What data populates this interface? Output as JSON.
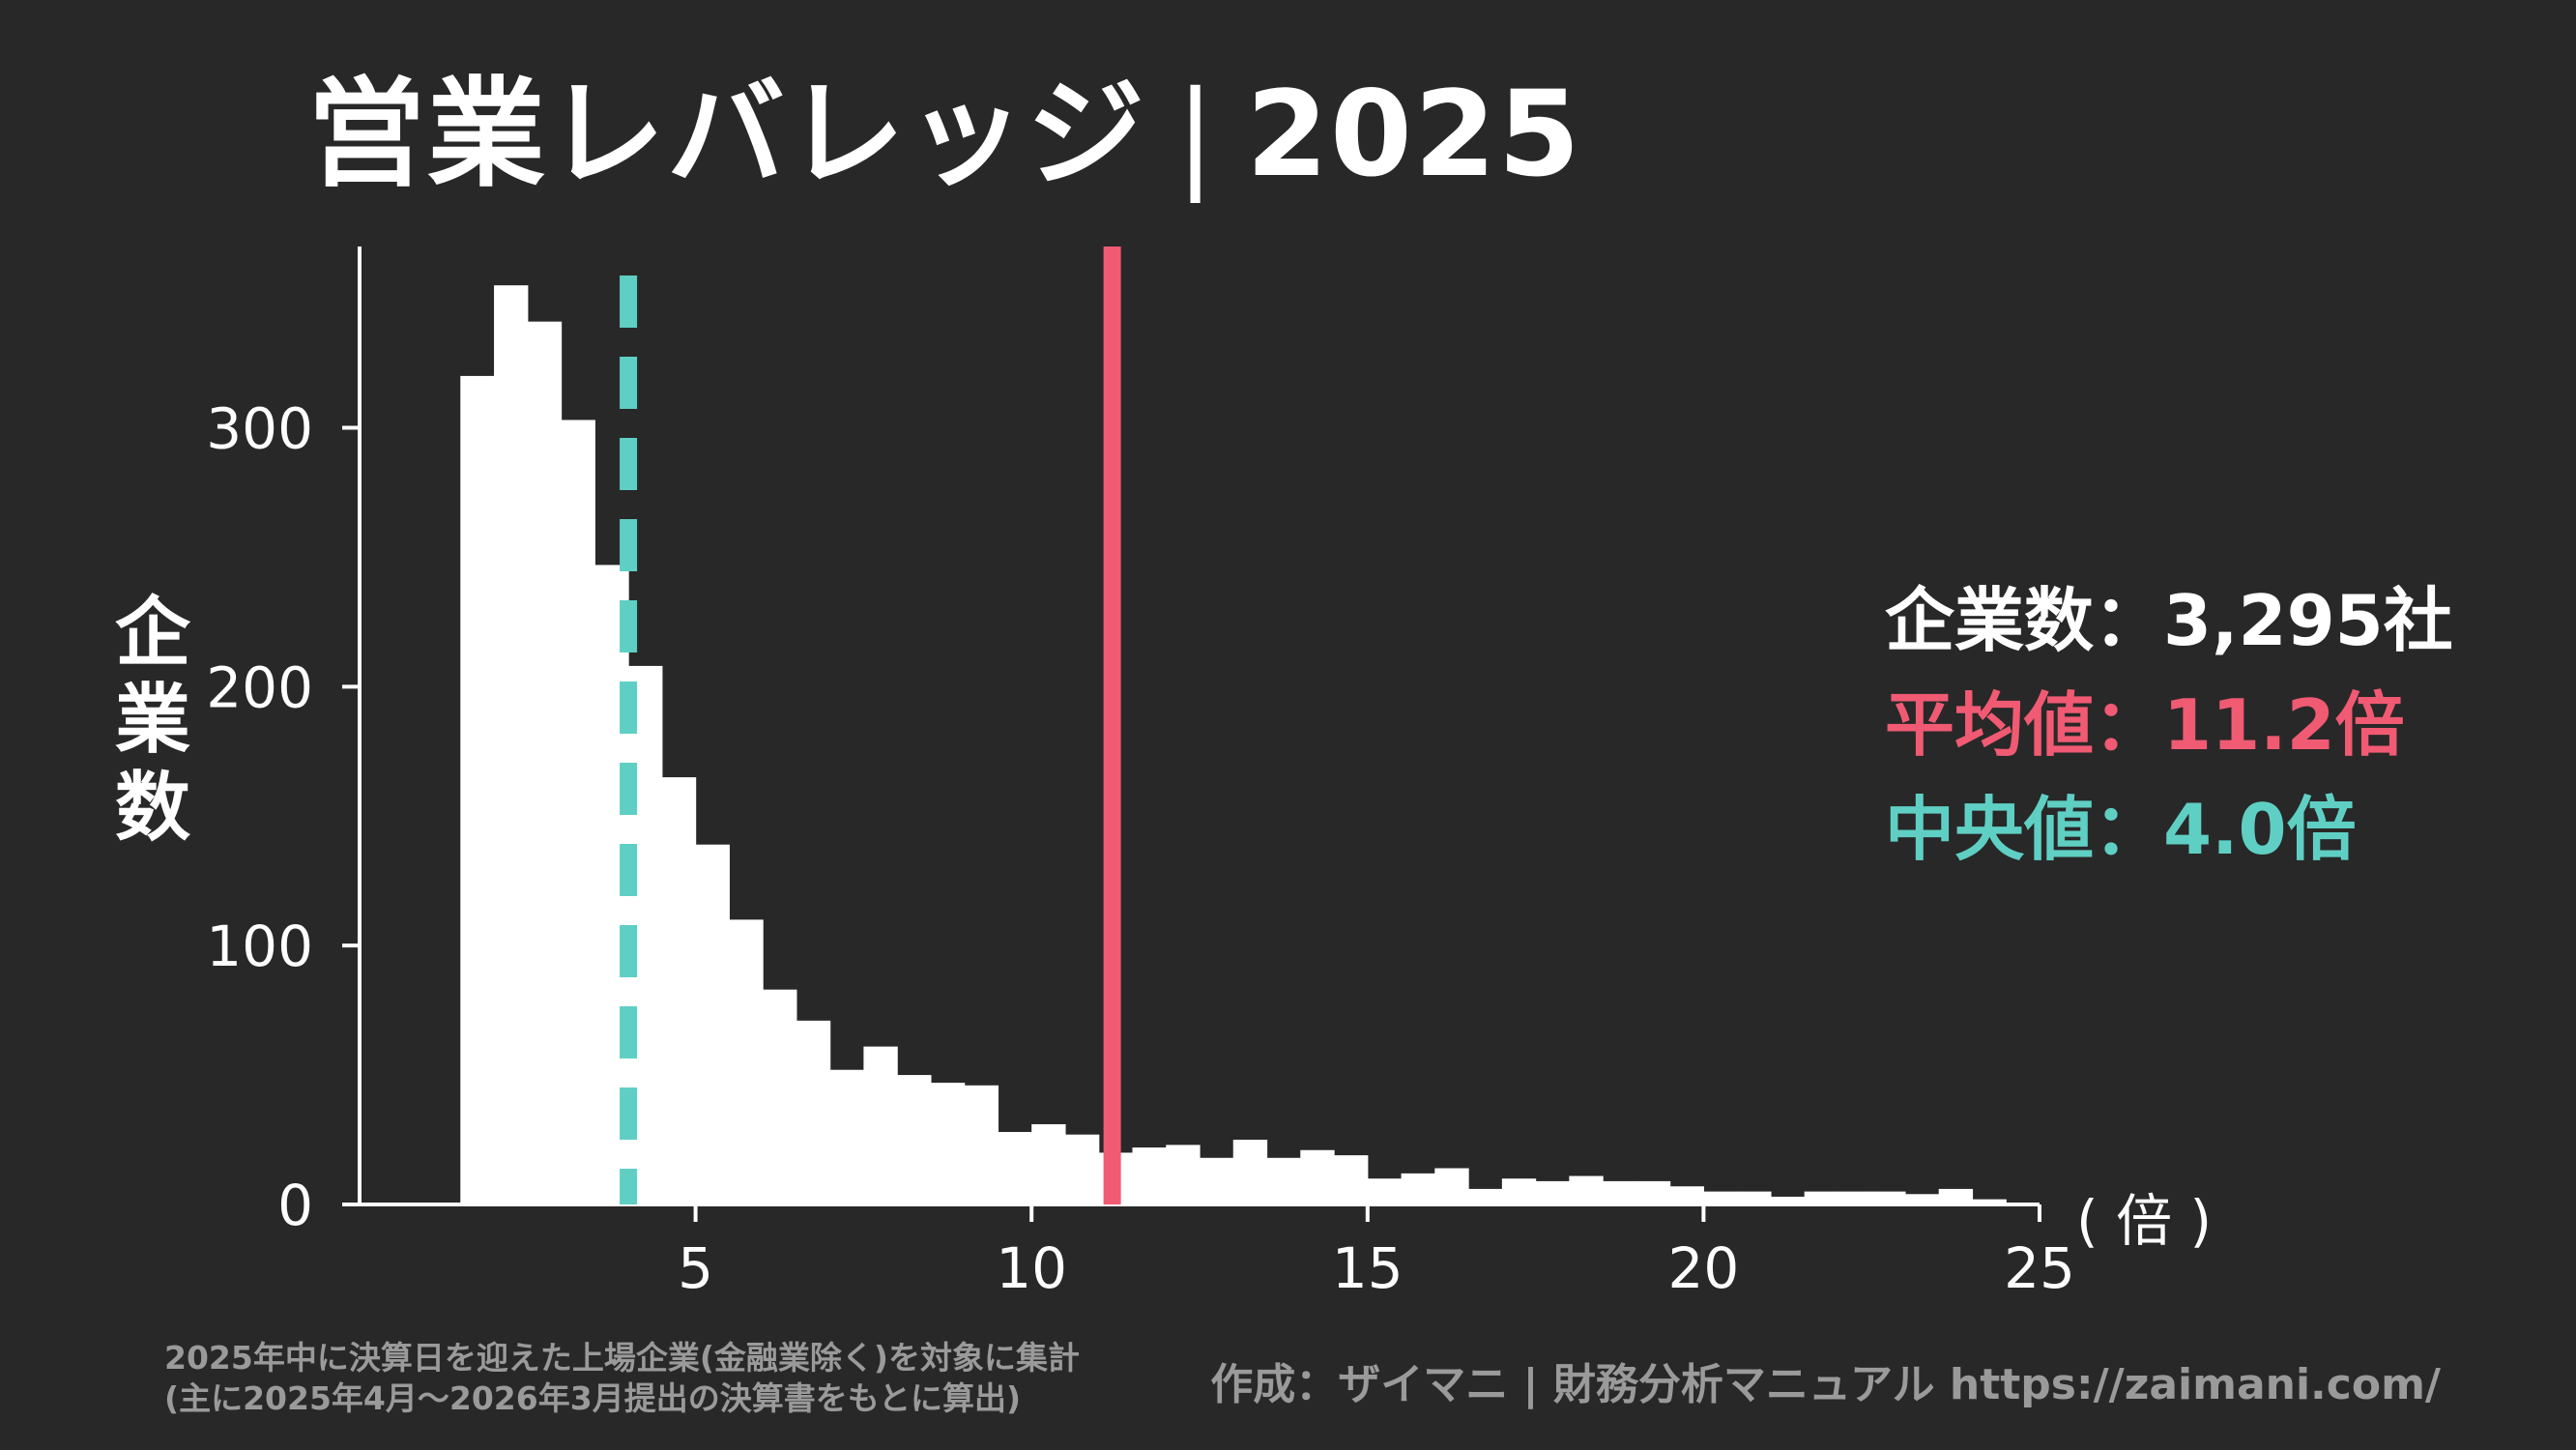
{
  "title": {
    "main": "営業レバレッジ",
    "separator": "|",
    "year": "2025"
  },
  "y_axis_label": [
    "企",
    "業",
    "数"
  ],
  "unit_label": "( 倍 )",
  "stats": {
    "count_label": "企業数",
    "count_value": "3,295社",
    "mean_label": "平均値",
    "mean_value": "11.2倍",
    "median_label": "中央値",
    "median_value": "4.0倍",
    "colon": "："
  },
  "note_lines": [
    "2025年中に決算日を迎えた上場企業(金融業除く)を対象に集計",
    "(主に2025年4月～2026年3月提出の決算書をもとに算出)"
  ],
  "credit": "作成：ザイマニ | 財務分析マニュアル https://zaimani.com/",
  "colors": {
    "background": "#282828",
    "bars": "#ffffff",
    "mean_line": "#f05a73",
    "median_line": "#5fcfc4"
  },
  "chart_data": {
    "type": "bar",
    "bin_start": 1.5,
    "bin_width": 0.5,
    "values": [
      320,
      355,
      341,
      303,
      247,
      208,
      165,
      139,
      110,
      83,
      71,
      52,
      61,
      50,
      47,
      46,
      28,
      31,
      27,
      20,
      22,
      23,
      18,
      25,
      18,
      21,
      19,
      10,
      12,
      14,
      6,
      10,
      9,
      11,
      9,
      9,
      7,
      5,
      5,
      3,
      5,
      5,
      5,
      4,
      6,
      2
    ],
    "xlim": [
      0,
      25
    ],
    "ylim": [
      0,
      370
    ],
    "x_ticks": [
      5,
      10,
      15,
      20,
      25
    ],
    "y_ticks": [
      0,
      100,
      200,
      300
    ],
    "mean": 11.2,
    "median": 4.0
  }
}
